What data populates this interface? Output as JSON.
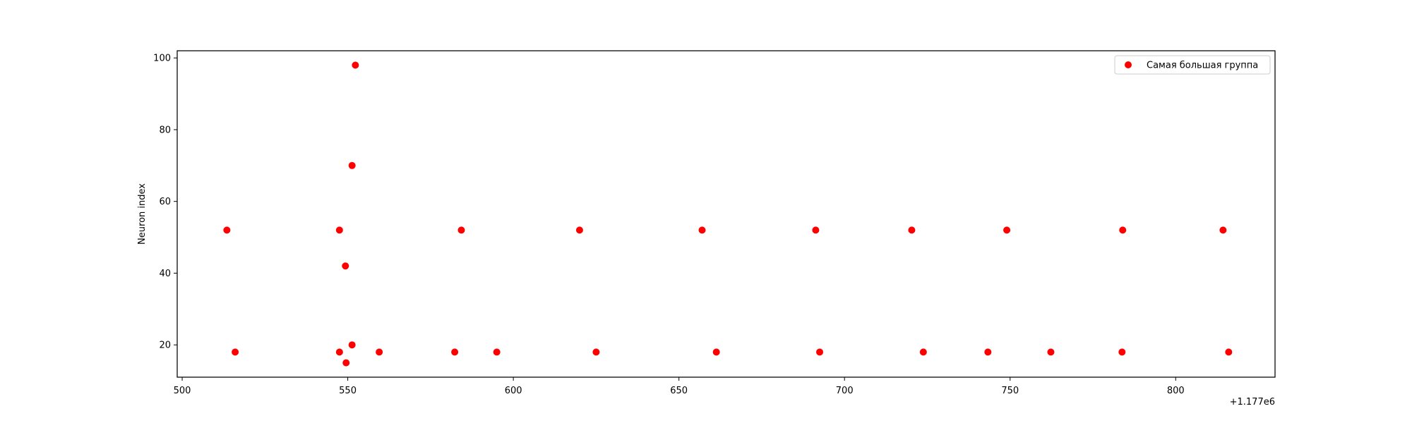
{
  "chart_data": {
    "type": "scatter",
    "title": "",
    "xlabel": "",
    "ylabel": "Neuron index",
    "x_offset_label": "+1.177e6",
    "xlim": [
      1177498.5,
      1177830
    ],
    "ylim": [
      11,
      102
    ],
    "xticks": [
      {
        "value": 1177500,
        "label": "500"
      },
      {
        "value": 1177550,
        "label": "550"
      },
      {
        "value": 1177600,
        "label": "600"
      },
      {
        "value": 1177650,
        "label": "650"
      },
      {
        "value": 1177700,
        "label": "700"
      },
      {
        "value": 1177750,
        "label": "750"
      },
      {
        "value": 1177800,
        "label": "800"
      }
    ],
    "yticks": [
      {
        "value": 20,
        "label": "20"
      },
      {
        "value": 40,
        "label": "40"
      },
      {
        "value": 60,
        "label": "60"
      },
      {
        "value": 80,
        "label": "80"
      },
      {
        "value": 100,
        "label": "100"
      }
    ],
    "grid": false,
    "legend": {
      "position": "top-right"
    },
    "series": [
      {
        "name": "Самая большая группа",
        "color": "#ff0000",
        "marker": "circle",
        "points": [
          [
            1177513.5,
            52
          ],
          [
            1177516,
            18
          ],
          [
            1177547.5,
            52
          ],
          [
            1177547.5,
            18
          ],
          [
            1177549.3,
            42
          ],
          [
            1177549.5,
            15
          ],
          [
            1177551.3,
            70
          ],
          [
            1177551.3,
            20
          ],
          [
            1177552.3,
            98
          ],
          [
            1177559.5,
            18
          ],
          [
            1177582.3,
            18
          ],
          [
            1177584.3,
            52
          ],
          [
            1177595,
            18
          ],
          [
            1177620,
            52
          ],
          [
            1177625,
            18
          ],
          [
            1177657,
            52
          ],
          [
            1177661.3,
            18
          ],
          [
            1177691.3,
            52
          ],
          [
            1177692.5,
            18
          ],
          [
            1177720.3,
            52
          ],
          [
            1177723.8,
            18
          ],
          [
            1177743.3,
            18
          ],
          [
            1177749,
            52
          ],
          [
            1177762.3,
            18
          ],
          [
            1177784,
            52
          ],
          [
            1177783.8,
            18
          ],
          [
            1177814.3,
            52
          ],
          [
            1177816,
            18
          ]
        ]
      }
    ]
  }
}
